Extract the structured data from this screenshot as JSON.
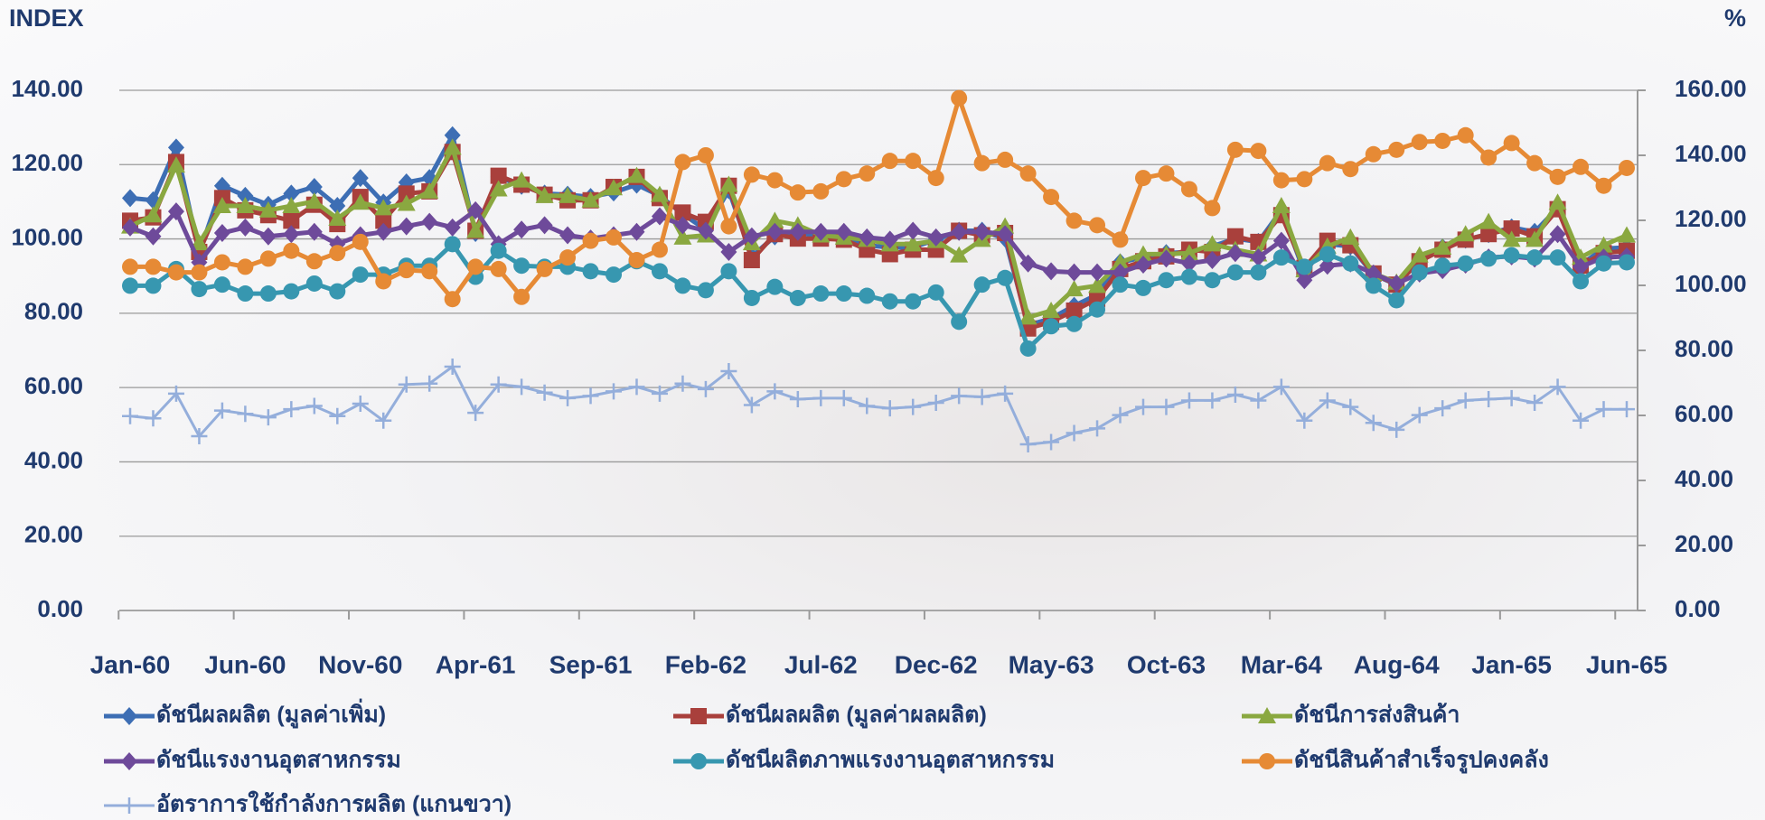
{
  "chart_data": {
    "type": "line",
    "y_label": "INDEX",
    "y2_label": "%",
    "categories": [
      "Jan-60",
      null,
      null,
      null,
      null,
      "Jun-60",
      null,
      null,
      null,
      null,
      "Nov-60",
      null,
      null,
      null,
      null,
      "Apr-61",
      null,
      null,
      null,
      null,
      "Sep-61",
      null,
      null,
      null,
      null,
      "Feb-62",
      null,
      null,
      null,
      null,
      "Jul-62",
      null,
      null,
      null,
      null,
      "Dec-62",
      null,
      null,
      null,
      null,
      "May-63",
      null,
      null,
      null,
      null,
      "Oct-63",
      null,
      null,
      null,
      null,
      "Mar-64",
      null,
      null,
      null,
      null,
      "Aug-64",
      null,
      null,
      null,
      null,
      "Jan-65",
      null,
      null,
      null,
      null,
      "Jun-65"
    ],
    "ylim": [
      0,
      140
    ],
    "yticks": [
      {
        "value": 0,
        "label": "0.00"
      },
      {
        "value": 20,
        "label": "20.00"
      },
      {
        "value": 40,
        "label": "40.00"
      },
      {
        "value": 60,
        "label": "60.00"
      },
      {
        "value": 80,
        "label": "80.00"
      },
      {
        "value": 100,
        "label": "100.00"
      },
      {
        "value": 120,
        "label": "120.00"
      },
      {
        "value": 140,
        "label": "140.00"
      }
    ],
    "y2lim": [
      0,
      160
    ],
    "y2ticks": [
      {
        "value": 0,
        "label": "0.00"
      },
      {
        "value": 20,
        "label": "20.00"
      },
      {
        "value": 40,
        "label": "40.00"
      },
      {
        "value": 60,
        "label": "60.00"
      },
      {
        "value": 80,
        "label": "80.00"
      },
      {
        "value": 100,
        "label": "100.00"
      },
      {
        "value": 120,
        "label": "120.00"
      },
      {
        "value": 140,
        "label": "140.00"
      },
      {
        "value": 160,
        "label": "160.00"
      }
    ],
    "grid": true,
    "legend": "bottom",
    "series": [
      {
        "name": "ดัชนีผลผลิต (มูลค่าเพิ่ม)",
        "color": "#3d6eb4",
        "marker": "diamond",
        "values": [
          111,
          110.4,
          124.6,
          96.2,
          114.3,
          111.6,
          109.2,
          112.2,
          114,
          108.9,
          116.4,
          109.8,
          115.2,
          116.4,
          127.9,
          101.6,
          116.7,
          114.3,
          112.2,
          111.9,
          111.3,
          112.5,
          114.6,
          111.6,
          106.7,
          102.5,
          113.1,
          95.3,
          100.7,
          101.6,
          100.7,
          101,
          98.3,
          97.7,
          97.7,
          99.8,
          102.2,
          102.2,
          100.1,
          76.8,
          78.6,
          82,
          85,
          93.7,
          95,
          96.2,
          96.5,
          98,
          100.1,
          99.2,
          107.7,
          91,
          98.6,
          98,
          90.4,
          87.7,
          94.3,
          97.7,
          99.8,
          101.3,
          103.1,
          101.9,
          108.3,
          93.1,
          97.4,
          97.7
        ]
      },
      {
        "name": "ดัชนีผลผลิต (มูลค่าผลผลิต)",
        "color": "#a9403c",
        "marker": "square",
        "values": [
          104.9,
          105.8,
          120.7,
          96.5,
          111,
          107.7,
          106.4,
          104.9,
          109.2,
          104,
          111.3,
          104.9,
          112.2,
          112.8,
          123.4,
          102.2,
          117,
          114.6,
          111.9,
          110.4,
          110.4,
          114,
          116.7,
          111,
          107.1,
          104.6,
          114.3,
          94.3,
          101.3,
          100.1,
          100.1,
          99.8,
          97.1,
          95.9,
          97.1,
          97.1,
          102.2,
          101,
          101.6,
          75.9,
          77.7,
          80.7,
          83.8,
          91.9,
          94,
          95.3,
          97.1,
          96.5,
          100.7,
          99.2,
          106.4,
          92.2,
          99.5,
          98.3,
          90.7,
          87.7,
          94,
          97.1,
          99.8,
          101.3,
          102.8,
          100.7,
          108,
          92.8,
          96.2,
          96.8
        ]
      },
      {
        "name": "ดัชนีการส่งสินค้า",
        "color": "#8aa840",
        "marker": "triangle",
        "values": [
          103.4,
          106.4,
          119.8,
          98.9,
          108.9,
          108.9,
          107.7,
          108.9,
          110.1,
          105.5,
          109.8,
          108.3,
          109.5,
          112.8,
          124.6,
          102.2,
          113.4,
          115.8,
          111.6,
          111.6,
          110.4,
          113.7,
          117,
          111.9,
          100.4,
          101,
          114.6,
          98.9,
          104.9,
          103.7,
          101,
          100.4,
          99.8,
          98.6,
          98.6,
          99.5,
          95.6,
          99.8,
          103.4,
          78.9,
          80.7,
          86.5,
          87.4,
          93.7,
          95.9,
          95.9,
          96.2,
          98.6,
          97.1,
          95.9,
          108.9,
          91.6,
          98,
          100.4,
          90.7,
          88.3,
          95.6,
          97.7,
          101.3,
          104.6,
          99.8,
          99.8,
          109.8,
          95,
          98.3,
          101
        ]
      },
      {
        "name": "ดัชนีแรงงานอุตสาหกรรม",
        "color": "#6e4a9a",
        "marker": "diamond",
        "values": [
          103.1,
          100.7,
          107.4,
          93.7,
          101.6,
          103.1,
          100.7,
          101.3,
          101.9,
          98.6,
          101,
          101.9,
          103.4,
          104.6,
          103.1,
          107.7,
          98.6,
          102.5,
          103.7,
          101,
          100.1,
          101,
          101.9,
          106.1,
          103.7,
          102.2,
          96.5,
          100.7,
          101.9,
          101.9,
          101.9,
          101.9,
          100.4,
          99.8,
          102.2,
          100.4,
          101.9,
          101.9,
          101.3,
          93.4,
          91.3,
          91,
          91,
          91,
          93.1,
          94.7,
          93.4,
          94.3,
          96.2,
          95,
          99.5,
          88.9,
          92.8,
          93.4,
          90.7,
          88,
          90.7,
          91.6,
          93.1,
          95,
          95.3,
          94.7,
          101.3,
          92.5,
          95,
          95.3
        ]
      },
      {
        "name": "ดัชนีผลิตภาพแรงงานอุตสาหกรรม",
        "color": "#3797b0",
        "marker": "circle",
        "values": [
          87.4,
          87.4,
          91.9,
          86.5,
          87.7,
          85.3,
          85.3,
          85.9,
          88,
          85.9,
          90.4,
          90.4,
          92.8,
          92.8,
          98.6,
          89.8,
          96.8,
          92.8,
          92.5,
          92.5,
          91.3,
          90.4,
          94,
          91.3,
          87.4,
          86.2,
          91.3,
          84.1,
          87.1,
          84.1,
          85.3,
          85.3,
          84.7,
          83.2,
          83.2,
          85.6,
          77.7,
          87.7,
          89.5,
          70.5,
          76.5,
          77.1,
          81,
          87.7,
          86.8,
          88.9,
          89.8,
          88.9,
          91,
          91,
          95,
          92.5,
          95.9,
          93.4,
          87.4,
          83.5,
          91,
          92.8,
          93.4,
          94.7,
          95.6,
          95,
          95,
          88.6,
          93.4,
          93.7
        ]
      },
      {
        "name": "ดัชนีสินค้าสำเร็จรูปคงคลัง",
        "color": "#e68a35",
        "marker": "circle",
        "values": [
          92.5,
          92.5,
          91,
          91,
          93.7,
          92.5,
          94.7,
          96.8,
          94,
          96.2,
          99.2,
          88.6,
          91.6,
          91.3,
          83.8,
          92.5,
          91.9,
          84.4,
          91.9,
          95,
          99.5,
          100.4,
          94.3,
          97.1,
          120.7,
          122.5,
          103.4,
          117.3,
          115.8,
          112.5,
          112.8,
          116.1,
          117.6,
          121,
          121,
          116.4,
          137.9,
          120.4,
          121.3,
          117.6,
          111.3,
          104.9,
          103.7,
          99.8,
          116.4,
          117.6,
          113.4,
          108.3,
          124,
          123.7,
          115.8,
          116.1,
          120.4,
          118.8,
          122.8,
          124,
          126.1,
          126.4,
          127.9,
          121.9,
          125.8,
          120.4,
          116.7,
          119.4,
          114.3,
          119.1
        ]
      },
      {
        "name": "อัตราการใช้กำลังการผลิต (แกนขวา)",
        "color": "#94aedb",
        "marker": "plus",
        "axis": "y2",
        "values": [
          59.8,
          59.1,
          66.7,
          53.6,
          61.5,
          60.5,
          59.4,
          61.9,
          62.9,
          59.8,
          63.6,
          58.4,
          69.5,
          69.8,
          75,
          60.8,
          69.5,
          68.8,
          67,
          65.3,
          66,
          67.4,
          68.8,
          66.7,
          69.8,
          68.1,
          73.6,
          63.2,
          67.4,
          65,
          65.3,
          65.3,
          62.9,
          62.2,
          62.6,
          63.9,
          66,
          65.7,
          66.7,
          51.1,
          51.8,
          54.6,
          56,
          60.1,
          62.6,
          62.6,
          64.6,
          64.6,
          66.4,
          64.6,
          68.8,
          58.4,
          64.6,
          62.6,
          57.7,
          55.6,
          60.1,
          62.2,
          64.6,
          65,
          65.3,
          63.9,
          68.8,
          58.4,
          61.9,
          61.9
        ]
      }
    ]
  }
}
